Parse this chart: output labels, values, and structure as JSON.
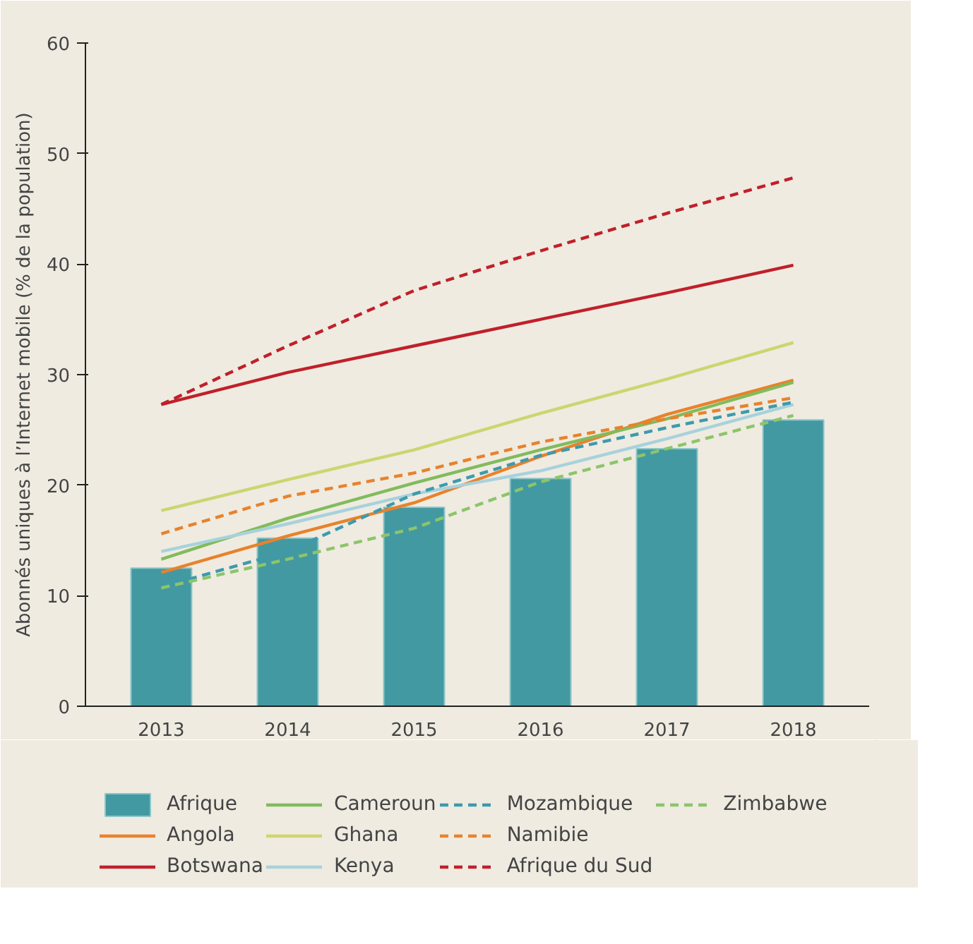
{
  "chart_data": {
    "type": "line",
    "ylabel": "Abonnés uniques à l’Internet mobile (% de la population)",
    "categories": [
      "2013",
      "2014",
      "2015",
      "2016",
      "2017",
      "2018"
    ],
    "ylim": [
      0,
      60
    ],
    "yticks": [
      0,
      10,
      20,
      30,
      40,
      50,
      60
    ],
    "grid": false,
    "legend": "bottom",
    "marker": "none",
    "series": [
      {
        "name": "Afrique",
        "type": "bar",
        "color": "#4399a1",
        "values": [
          12.5,
          15.2,
          18.0,
          20.6,
          23.3,
          25.9
        ]
      },
      {
        "name": "Angola",
        "color": "#e8822c",
        "line_style": "solid",
        "values": [
          12.1,
          15.4,
          18.4,
          22.6,
          26.4,
          29.5
        ]
      },
      {
        "name": "Botswana",
        "color": "#c0202a",
        "line_style": "solid",
        "values": [
          27.3,
          30.2,
          32.6,
          35.0,
          37.4,
          39.9
        ]
      },
      {
        "name": "Cameroun",
        "color": "#82bb5c",
        "line_style": "solid",
        "values": [
          13.3,
          17.0,
          20.2,
          23.2,
          26.0,
          29.3
        ]
      },
      {
        "name": "Ghana",
        "color": "#cdd56f",
        "line_style": "solid",
        "values": [
          17.7,
          20.5,
          23.2,
          26.5,
          29.6,
          32.9
        ]
      },
      {
        "name": "Kenya",
        "color": "#a8d2dc",
        "line_style": "solid",
        "values": [
          14.0,
          16.5,
          19.2,
          21.3,
          24.2,
          27.3
        ]
      },
      {
        "name": "Mozambique",
        "color": "#3d9aad",
        "line_style": "dashed",
        "values": [
          10.8,
          14.0,
          19.2,
          22.7,
          25.2,
          27.5
        ]
      },
      {
        "name": "Namibie",
        "color": "#e8822c",
        "line_style": "dashed",
        "values": [
          15.6,
          19.0,
          21.1,
          23.9,
          26.0,
          27.9
        ]
      },
      {
        "name": "Afrique du Sud",
        "color": "#c0202a",
        "line_style": "dashed",
        "values": [
          27.3,
          32.6,
          37.6,
          41.2,
          44.6,
          47.8
        ]
      },
      {
        "name": "Zimbabwe",
        "color": "#8cc56a",
        "line_style": "dashed",
        "values": [
          10.7,
          13.3,
          16.1,
          20.3,
          23.3,
          26.3
        ]
      }
    ]
  }
}
